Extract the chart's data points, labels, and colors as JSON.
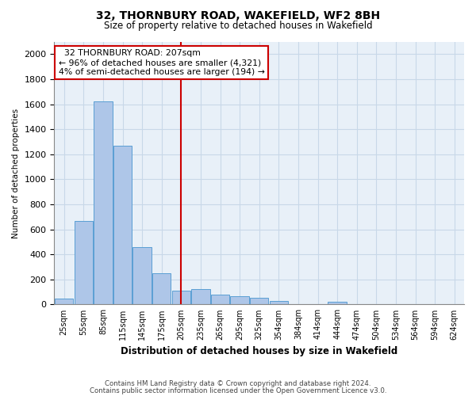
{
  "title1": "32, THORNBURY ROAD, WAKEFIELD, WF2 8BH",
  "title2": "Size of property relative to detached houses in Wakefield",
  "xlabel": "Distribution of detached houses by size in Wakefield",
  "ylabel": "Number of detached properties",
  "categories": [
    "25sqm",
    "55sqm",
    "85sqm",
    "115sqm",
    "145sqm",
    "175sqm",
    "205sqm",
    "235sqm",
    "265sqm",
    "295sqm",
    "325sqm",
    "354sqm",
    "384sqm",
    "414sqm",
    "444sqm",
    "474sqm",
    "504sqm",
    "534sqm",
    "564sqm",
    "594sqm",
    "624sqm"
  ],
  "values": [
    50,
    670,
    1620,
    1270,
    460,
    250,
    110,
    120,
    80,
    65,
    55,
    30,
    5,
    0,
    20,
    0,
    0,
    0,
    0,
    0,
    0
  ],
  "bar_color": "#aec6e8",
  "bar_edge_color": "#5a9fd4",
  "grid_color": "#c8d8e8",
  "background_color": "#e8f0f8",
  "vline_index": 6,
  "vline_color": "#cc0000",
  "annotation_line1": "  32 THORNBURY ROAD: 207sqm",
  "annotation_line2": "← 96% of detached houses are smaller (4,321)",
  "annotation_line3": "4% of semi-detached houses are larger (194) →",
  "annotation_box_color": "#cc0000",
  "ylim": [
    0,
    2100
  ],
  "yticks": [
    0,
    200,
    400,
    600,
    800,
    1000,
    1200,
    1400,
    1600,
    1800,
    2000
  ],
  "footnote1": "Contains HM Land Registry data © Crown copyright and database right 2024.",
  "footnote2": "Contains public sector information licensed under the Open Government Licence v3.0."
}
